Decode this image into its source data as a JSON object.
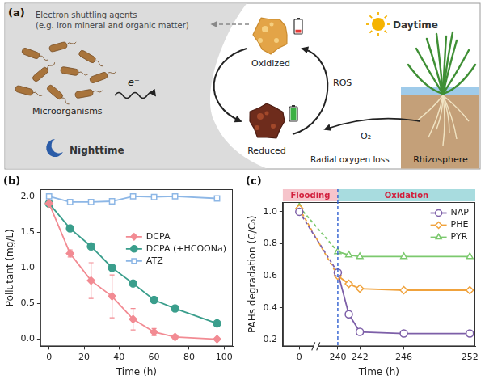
{
  "diagram": {
    "panel": "(a)",
    "shuttle": [
      "Electron shuttling agents",
      "(e.g. iron mineral and organic matter)"
    ],
    "microorganisms": "Microorganisms",
    "electron": "e⁻",
    "night": "Nighttime",
    "oxidized": "Oxidized",
    "reduced": "Reduced",
    "ros": "ROS",
    "oxygen": "O₂",
    "oxygen_note": "Radial oxygen loss",
    "day": "Daytime",
    "rhizosphere": "Rhizosphere"
  },
  "chart_data": [
    {
      "panel": "(b)",
      "type": "line",
      "x_label": "Time (h)",
      "y_label": "Pollutant (mg/L)",
      "x": [
        0,
        12,
        24,
        36,
        48,
        60,
        72,
        96
      ],
      "series": [
        {
          "name": "DCPA",
          "color": "#f28b93",
          "marker": "diamond",
          "values": [
            1.9,
            1.2,
            0.82,
            0.6,
            0.28,
            0.1,
            0.03,
            0.0
          ],
          "errors": [
            0,
            0.05,
            0.25,
            0.3,
            0.15,
            0.05,
            0.03,
            0
          ]
        },
        {
          "name": "DCPA (+HCOONa)",
          "color": "#3a9e8c",
          "marker": "circle",
          "values": [
            1.9,
            1.55,
            1.3,
            1.0,
            0.78,
            0.55,
            0.43,
            0.22
          ]
        },
        {
          "name": "ATZ",
          "color": "#8db7e6",
          "marker": "square-open",
          "values": [
            2.0,
            1.92,
            1.92,
            1.93,
            2.0,
            1.99,
            2.0,
            1.97
          ]
        }
      ],
      "xlim": [
        -5,
        105
      ],
      "xticks": [
        0,
        20,
        40,
        60,
        80,
        100
      ],
      "ylim": [
        -0.1,
        2.1
      ],
      "yticks": [
        {
          "value": 0,
          "label": "0.0"
        },
        0.5,
        {
          "value": 1,
          "label": "1.0"
        },
        1.5,
        {
          "value": 2,
          "label": "2.0"
        }
      ],
      "grid": false,
      "legend": "right"
    },
    {
      "panel": "(c)",
      "type": "line",
      "x_label": "Time (h)",
      "y_label": "PAHs degradation (C/C₀)",
      "x": [
        0,
        240,
        241,
        242,
        246,
        252
      ],
      "series": [
        {
          "name": "NAP",
          "color": "#7d5fa8",
          "marker": "circle-open",
          "values": [
            1.0,
            0.62,
            0.36,
            0.25,
            0.24,
            0.24
          ]
        },
        {
          "name": "PHE",
          "color": "#f0a23c",
          "marker": "diamond-open",
          "values": [
            1.02,
            0.6,
            0.55,
            0.52,
            0.51,
            0.51
          ]
        },
        {
          "name": "PYR",
          "color": "#7cc96e",
          "marker": "triangle-open",
          "values": [
            1.03,
            0.75,
            0.73,
            0.72,
            0.72,
            0.72
          ]
        }
      ],
      "xlim": [
        [
          -1.5,
          1.5
        ],
        [
          238,
          252.5
        ]
      ],
      "xticks": [
        0,
        240,
        242,
        246,
        252
      ],
      "ylim": [
        0.16,
        1.06
      ],
      "yticks": [
        0.2,
        0.4,
        0.6,
        0.8,
        {
          "value": 1,
          "label": "1.0"
        }
      ],
      "grid": false,
      "legend": "upper right",
      "phases": [
        {
          "label": "Flooding",
          "end": 240,
          "color": "#f6c4cb"
        },
        {
          "label": "Oxidation",
          "start": 240,
          "color": "#a8dcdf"
        }
      ]
    }
  ]
}
